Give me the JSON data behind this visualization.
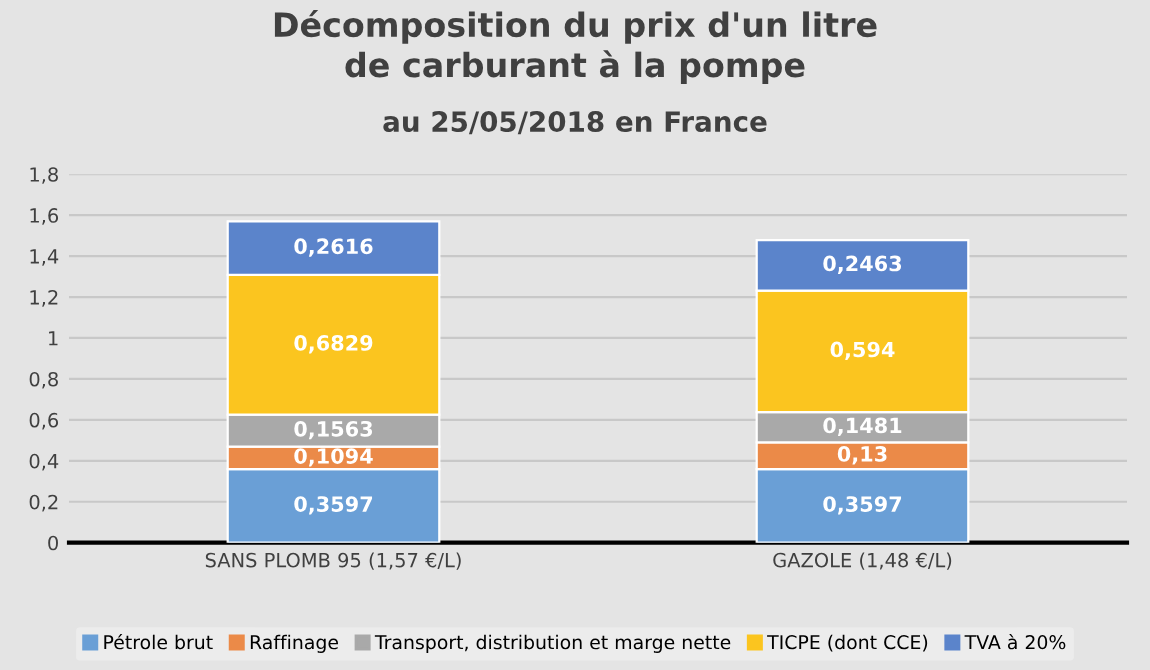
{
  "chart_data": {
    "type": "bar",
    "stacked": true,
    "title": "Décomposition du prix d'un litre\nde carburant à la pompe",
    "subtitle": "au 25/05/2018 en France",
    "categories": [
      "SANS PLOMB 95 (1,57 €/L)",
      "GAZOLE (1,48 €/L)"
    ],
    "series": [
      {
        "name": "Pétrole brut",
        "color": "#6a9fd6",
        "values": [
          0.3597,
          0.3597
        ],
        "value_labels": [
          "0,3597",
          "0,3597"
        ]
      },
      {
        "name": "Raffinage",
        "color": "#eb8a48",
        "values": [
          0.1094,
          0.13
        ],
        "value_labels": [
          "0,1094",
          "0,13"
        ]
      },
      {
        "name": "Transport, distribution et marge nette",
        "color": "#a9a9a9",
        "values": [
          0.1563,
          0.1481
        ],
        "value_labels": [
          "0,1563",
          "0,1481"
        ]
      },
      {
        "name": "TICPE (dont CCE)",
        "color": "#fbc51f",
        "values": [
          0.6829,
          0.594
        ],
        "value_labels": [
          "0,6829",
          "0,594"
        ]
      },
      {
        "name": "TVA à 20%",
        "color": "#5b84cb",
        "values": [
          0.2616,
          0.2463
        ],
        "value_labels": [
          "0,2616",
          "0,2463"
        ]
      }
    ],
    "ylim": [
      0,
      1.8
    ],
    "yticks": [
      0,
      {
        "value": 0.2,
        "label": "0,2"
      },
      {
        "value": 0.4,
        "label": "0,4"
      },
      {
        "value": 0.6,
        "label": "0,6"
      },
      {
        "value": 0.8,
        "label": "0,8"
      },
      1,
      {
        "value": 1.2,
        "label": "1,2"
      },
      {
        "value": 1.4,
        "label": "1,4"
      },
      {
        "value": 1.6,
        "label": "1,6"
      },
      {
        "value": 1.8,
        "label": "1,8"
      }
    ],
    "grid": "y",
    "legend": "bottom"
  }
}
